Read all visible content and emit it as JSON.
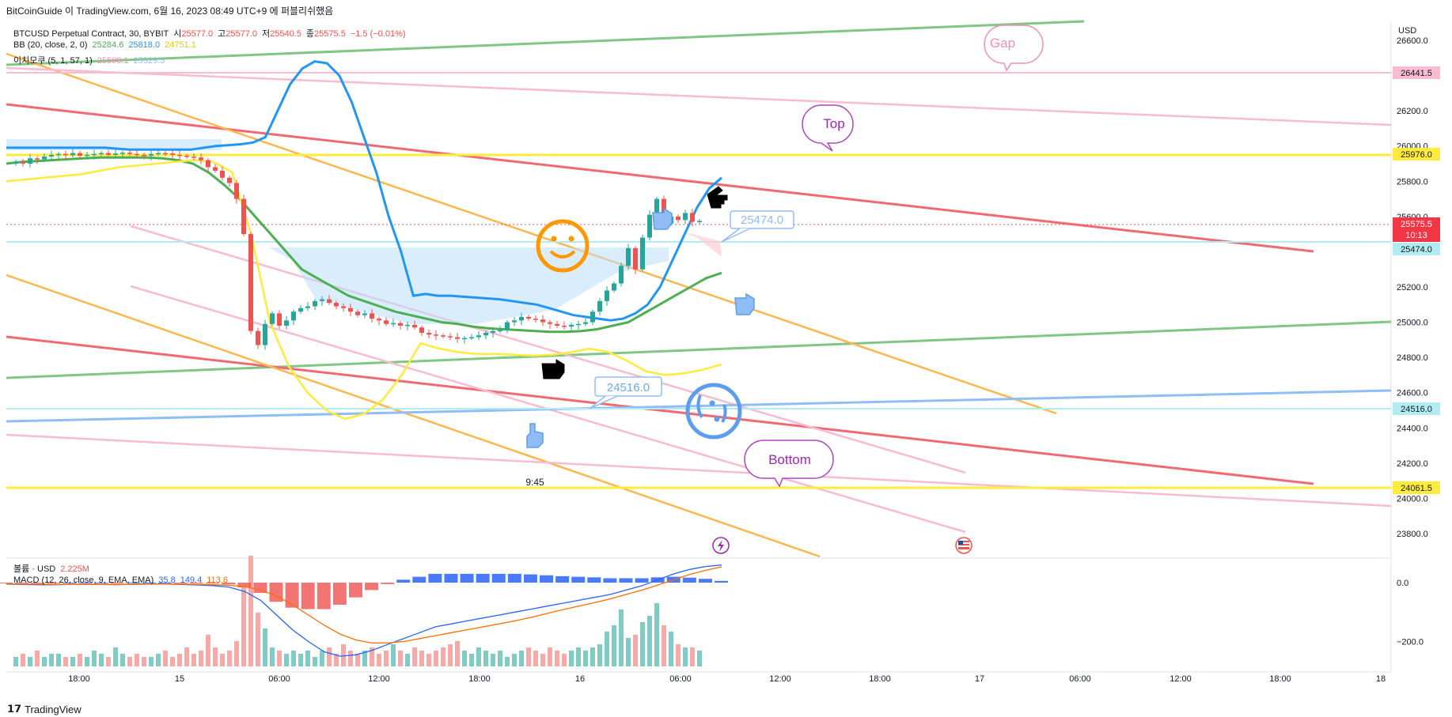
{
  "header": "BitCoinGuide 이 TradingView.com, 6월 16, 2023 08:49 UTC+9 에 퍼블리쉬했음",
  "currency": "USD",
  "footer_brand": "TradingView",
  "legend": {
    "symbol": "BTCUSD Perpetual Contract, 30, BYBIT",
    "o_label": "시",
    "o": "25577.0",
    "h_label": "고",
    "h": "25577.0",
    "l_label": "저",
    "l": "25540.5",
    "c_label": "종",
    "c": "25575.5",
    "chg": "−1.5 (−0.01%)",
    "bb_label": "BB (20, close, 2, 0)",
    "bb1": "25284.6",
    "bb2": "25818.0",
    "bb3": "24751.1",
    "ichi_label": "이치모쿠 (5, 1, 57, 1)",
    "ichi1": "25598.1",
    "ichi2": "25329.5",
    "vol_label": "볼륨 · USD",
    "vol": "2.225M",
    "macd_label": "MACD (12, 26, close, 9, EMA, EMA)",
    "macd1": "35.8",
    "macd2": "149.4",
    "macd3": "113.6"
  },
  "price_axis": [
    "26600.0",
    "26400.0",
    "26200.0",
    "26000.0",
    "25800.0",
    "25600.0",
    "25400.0",
    "25200.0",
    "25000.0",
    "24800.0",
    "24600.0",
    "24400.0",
    "24200.0",
    "24000.0",
    "23800.0"
  ],
  "macd_axis": [
    "0.0",
    "−200.0"
  ],
  "time_axis": [
    "18:00",
    "15",
    "06:00",
    "12:00",
    "18:00",
    "16",
    "06:00",
    "12:00",
    "18:00",
    "17",
    "06:00",
    "12:00",
    "18:00",
    "18"
  ],
  "price_tags": {
    "gap": "26441.5",
    "top": "25976.0",
    "last": "25575.5",
    "countdown": "10:13",
    "cyan": "25474.0",
    "blue": "24516.0",
    "bottom": "24061.5"
  },
  "callouts": {
    "gap": "Gap",
    "top": "Top",
    "bottom": "Bottom",
    "price1": "25474.0",
    "price2": "24516.0",
    "time": "9:45"
  },
  "colors": {
    "up": "#26a69a",
    "down": "#ef5350",
    "bb_upper": "#2196f3",
    "bb_basis": "#4caf50",
    "bb_lower": "#ffeb3b",
    "orange": "#ff9800",
    "red_line": "#f06a73",
    "pink": "#f8bbd0",
    "blue_line": "#64a4f0",
    "purple": "#9c27b0",
    "yellow_line": "#ffeb3b"
  },
  "chart_data": {
    "type": "candlestick",
    "ylim": [
      23700,
      26700
    ],
    "macd_ylim": [
      -290,
      70
    ],
    "closes": [
      25910,
      25900,
      25930,
      25925,
      25940,
      25950,
      25955,
      25948,
      25960,
      25945,
      25950,
      25955,
      25960,
      25950,
      25958,
      25962,
      25955,
      25950,
      25945,
      25955,
      25960,
      25958,
      25950,
      25945,
      25940,
      25935,
      25920,
      25880,
      25860,
      25820,
      25790,
      25700,
      25500,
      24950,
      24870,
      24990,
      25050,
      24980,
      25010,
      25060,
      25080,
      25090,
      25120,
      25130,
      25110,
      25090,
      25080,
      25060,
      25040,
      25050,
      25020,
      25010,
      24990,
      24995,
      24980,
      24985,
      24970,
      24940,
      24930,
      24925,
      24920,
      24915,
      24905,
      24910,
      24915,
      24925,
      24940,
      24950,
      24955,
      25000,
      25010,
      25030,
      25020,
      25015,
      25000,
      24990,
      24980,
      24975,
      24985,
      24990,
      25000,
      25060,
      25120,
      25180,
      25220,
      25320,
      25420,
      25300,
      25480,
      25610,
      25700,
      25560,
      25600,
      25580,
      25620,
      25570,
      25575
    ],
    "bb_upper": [
      25990,
      25990,
      25990,
      25990,
      25990,
      25990,
      25990,
      25990,
      25990,
      25985,
      25980,
      25980,
      25980,
      25980,
      25980,
      25980,
      25990,
      26000,
      26005,
      26010,
      26020,
      26050,
      26200,
      26350,
      26440,
      26480,
      26470,
      26400,
      26250,
      26050,
      25850,
      25600,
      25400,
      25150,
      25160,
      25150,
      25150,
      25145,
      25140,
      25135,
      25130,
      25120,
      25110,
      25100,
      25080,
      25060,
      25040,
      25030,
      25020,
      25010,
      25020,
      25050,
      25100,
      25200,
      25350,
      25500,
      25650,
      25760,
      25820
    ],
    "bb_basis": [
      25900,
      25910,
      25915,
      25920,
      25925,
      25930,
      25935,
      25935,
      25935,
      25935,
      25930,
      25920,
      25900,
      25850,
      25780,
      25700,
      25600,
      25500,
      25400,
      25300,
      25250,
      25200,
      25150,
      25120,
      25090,
      25060,
      25040,
      25020,
      25000,
      24990,
      24975,
      24965,
      24960,
      24955,
      24950,
      24945,
      24945,
      24950,
      24960,
      24980,
      25000,
      25050,
      25100,
      25150,
      25200,
      25250,
      25280
    ],
    "bb_lower": [
      25800,
      25810,
      25820,
      25830,
      25840,
      25860,
      25880,
      25890,
      25900,
      25910,
      25920,
      25910,
      25850,
      25500,
      25000,
      24750,
      24600,
      24500,
      24450,
      24480,
      24560,
      24700,
      24880,
      24850,
      24830,
      24820,
      24820,
      24815,
      24810,
      24815,
      24830,
      24850,
      24830,
      24780,
      24720,
      24700,
      24710,
      24730,
      24760
    ],
    "macd_line": [
      -5,
      -6,
      -7,
      -7,
      -6,
      -5,
      -6,
      -7,
      -5,
      -4,
      -5,
      -6,
      -8,
      -10,
      -15,
      -30,
      -60,
      -110,
      -160,
      -200,
      -235,
      -250,
      -245,
      -230,
      -210,
      -190,
      -170,
      -150,
      -140,
      -130,
      -120,
      -110,
      -100,
      -90,
      -80,
      -70,
      -60,
      -50,
      -40,
      -25,
      -10,
      10,
      30,
      45,
      55,
      60
    ],
    "signal_line": [
      -4,
      -5,
      -5,
      -6,
      -6,
      -6,
      -6,
      -6,
      -6,
      -5,
      -5,
      -5,
      -6,
      -7,
      -9,
      -14,
      -25,
      -45,
      -75,
      -110,
      -145,
      -175,
      -195,
      -205,
      -205,
      -200,
      -190,
      -180,
      -170,
      -160,
      -150,
      -140,
      -130,
      -118,
      -105,
      -92,
      -80,
      -68,
      -55,
      -40,
      -25,
      -8,
      10,
      28,
      42,
      54
    ],
    "hist": [
      -1,
      -1,
      -2,
      -1,
      0,
      1,
      0,
      -1,
      1,
      1,
      0,
      -1,
      -2,
      -3,
      -6,
      -16,
      -35,
      -65,
      -85,
      -90,
      -90,
      -75,
      -50,
      -25,
      -5,
      10,
      20,
      30,
      30,
      30,
      30,
      30,
      30,
      28,
      25,
      22,
      20,
      18,
      15,
      15,
      15,
      18,
      20,
      17,
      13,
      6
    ],
    "volume": [
      0.3,
      0.4,
      0.3,
      0.5,
      0.3,
      0.4,
      0.4,
      0.3,
      0.3,
      0.4,
      0.3,
      0.5,
      0.4,
      0.3,
      0.6,
      0.4,
      0.3,
      0.4,
      0.3,
      0.3,
      0.4,
      0.5,
      0.3,
      0.4,
      0.6,
      0.4,
      0.5,
      1.0,
      0.6,
      0.4,
      0.5,
      0.8,
      2.5,
      3.5,
      1.7,
      1.2,
      0.6,
      0.5,
      0.4,
      0.5,
      0.4,
      0.5,
      0.3,
      0.5,
      0.6,
      0.4,
      0.7,
      0.5,
      0.4,
      0.5,
      0.6,
      0.4,
      0.5,
      0.7,
      0.5,
      0.4,
      0.6,
      0.5,
      0.4,
      0.5,
      0.6,
      0.7,
      0.8,
      0.5,
      0.4,
      0.6,
      0.5,
      0.4,
      0.5,
      0.3,
      0.4,
      0.5,
      0.6,
      0.5,
      0.4,
      0.6,
      0.5,
      0.4,
      0.5,
      0.6,
      0.5,
      0.6,
      0.7,
      1.1,
      1.3,
      1.8,
      0.9,
      1.0,
      1.4,
      1.6,
      2.0,
      1.3,
      1.1,
      0.7,
      0.6,
      0.6,
      0.5
    ]
  }
}
